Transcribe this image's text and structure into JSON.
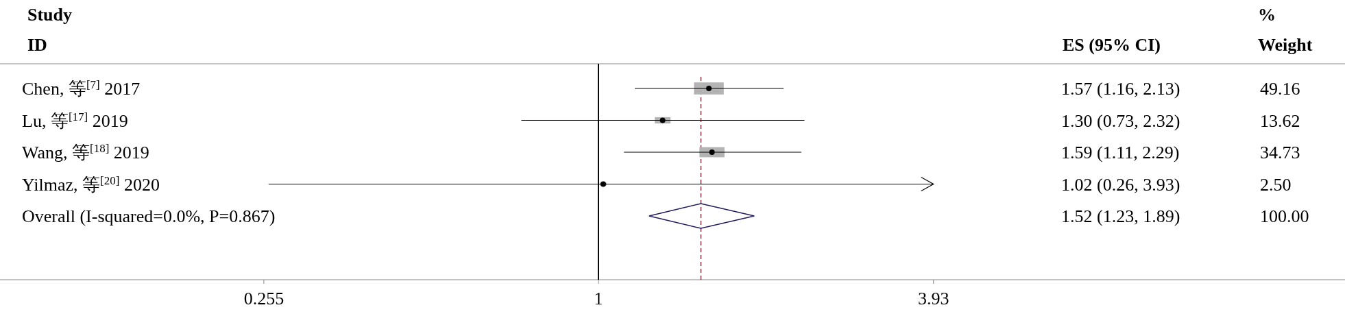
{
  "chart_data": {
    "type": "scatter",
    "orientation": "horizontal",
    "log": "x",
    "xlim": [
      0.0868,
      21.1
    ],
    "xticks": [
      0.255,
      1,
      3.93
    ],
    "grid": false,
    "categories": [
      "Chen, 等$^{[7]}$ 2017",
      "Lu, 等$^{[17]}$ 2019",
      "Wang, 等$^{[18]}$ 2019",
      "Yilmaz, 等$^{[20]}$ 2020",
      "Overall (I-squared=0.0%, P=0.867)"
    ],
    "annotations": [
      "Study\nID",
      "ES (95% CI)",
      "%\nWeight",
      "49.16",
      "13.62",
      "34.73",
      "2.50",
      "100.00",
      "1.57 (1.16, 2.13)",
      "1.30 (0.73, 2.32)",
      "1.59 (1.11, 2.29)",
      "1.02 (0.26, 3.93)",
      "1.52 (1.23, 1.89)"
    ],
    "series": [
      {
        "type": "scatter",
        "marker": "circle",
        "color": "#000000",
        "values": [
          1.57,
          1.3,
          1.59,
          1.02,
          null
        ],
        "errors": [
          [
            1.16,
            2.13
          ],
          [
            0.73,
            2.32
          ],
          [
            1.11,
            2.29
          ],
          [
            0.26,
            3.93
          ],
          null
        ]
      }
    ],
    "ref_lines": [
      {
        "axis": "x",
        "value": 1,
        "color": "#000000",
        "line_style": "solid"
      },
      {
        "axis": "x",
        "value": 1.52,
        "color": "#7a3040",
        "line_style": "dashed"
      }
    ]
  }
}
